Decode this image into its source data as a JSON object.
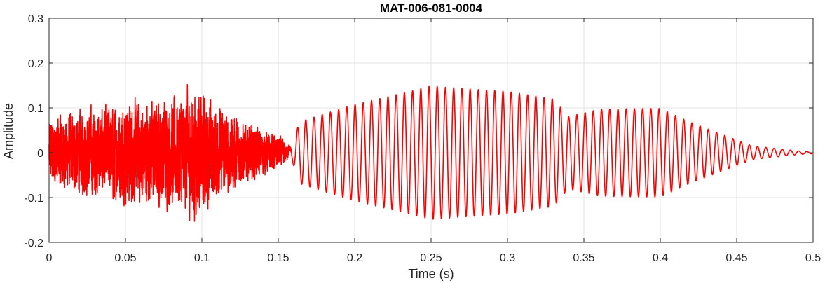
{
  "chart_data": {
    "type": "line",
    "title": "MAT-006-081-0004",
    "xlabel": "Time (s)",
    "ylabel": "Amplitude",
    "xlim": [
      0,
      0.5
    ],
    "ylim": [
      -0.2,
      0.3
    ],
    "x_ticks": [
      0,
      0.05,
      0.1,
      0.15,
      0.2,
      0.25,
      0.3,
      0.35,
      0.4,
      0.45,
      0.5
    ],
    "x_tick_labels": [
      "0",
      "0.05",
      "0.1",
      "0.15",
      "0.2",
      "0.25",
      "0.3",
      "0.35",
      "0.4",
      "0.45",
      "0.5"
    ],
    "y_ticks": [
      -0.2,
      -0.1,
      0,
      0.1,
      0.2,
      0.3
    ],
    "y_tick_labels": [
      "-0.2",
      "-0.1",
      "0",
      "0.1",
      "0.2",
      "0.3"
    ],
    "grid": true,
    "box": true,
    "series": [
      {
        "color": "#ff0000",
        "sample_rate_hz": 16000,
        "duration_s": 0.5,
        "segments": [
          {
            "kind": "noise",
            "t_start": 0.0,
            "t_end": 0.16,
            "envelope": [
              [
                0.0,
                0.08
              ],
              [
                0.02,
                0.1
              ],
              [
                0.05,
                0.12
              ],
              [
                0.08,
                0.13
              ],
              [
                0.095,
                0.16
              ],
              [
                0.11,
                0.11
              ],
              [
                0.13,
                0.07
              ],
              [
                0.15,
                0.04
              ],
              [
                0.16,
                0.03
              ]
            ]
          },
          {
            "kind": "tone",
            "t_start": 0.155,
            "t_end": 0.5,
            "frequency_hz": 186,
            "envelope": [
              [
                0.155,
                0.02
              ],
              [
                0.165,
                0.07
              ],
              [
                0.2,
                0.11
              ],
              [
                0.25,
                0.155
              ],
              [
                0.3,
                0.14
              ],
              [
                0.33,
                0.12
              ],
              [
                0.34,
                0.08
              ],
              [
                0.36,
                0.095
              ],
              [
                0.4,
                0.095
              ],
              [
                0.42,
                0.065
              ],
              [
                0.44,
                0.04
              ],
              [
                0.46,
                0.015
              ],
              [
                0.49,
                0.004
              ],
              [
                0.5,
                0.002
              ]
            ]
          }
        ]
      }
    ]
  }
}
